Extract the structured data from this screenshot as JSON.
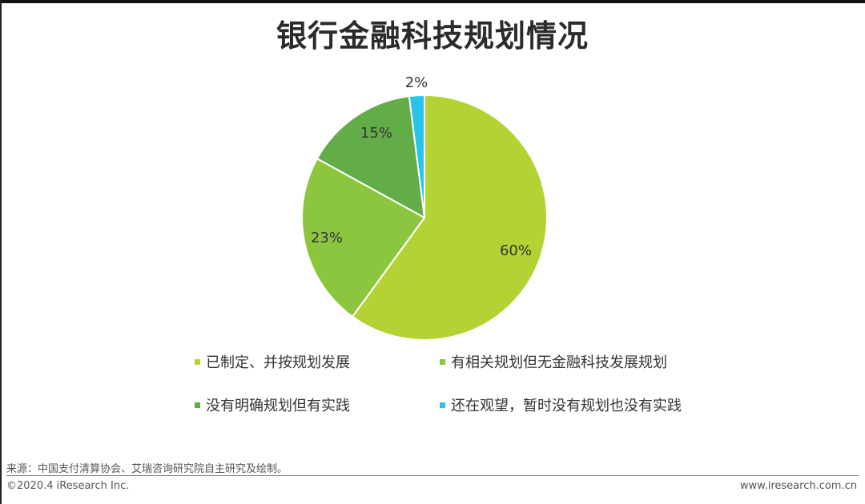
{
  "title": "银行金融科技规划情况",
  "chart_data": {
    "type": "pie",
    "slices": [
      {
        "label": "已制定、并按规划发展",
        "value": 60,
        "display": "60%",
        "color": "#b3d335"
      },
      {
        "label": "有相关规划但无金融科技发展规划",
        "value": 23,
        "display": "23%",
        "color": "#8cc63f"
      },
      {
        "label": "没有明确规划但有实践",
        "value": 15,
        "display": "15%",
        "color": "#62ad47"
      },
      {
        "label": "还在观望，暂时没有规划也没有实践",
        "value": 2,
        "display": "2%",
        "color": "#29c4ec"
      }
    ],
    "legend_placement": "bottom"
  },
  "footer": {
    "source": "来源：中国支付清算协会、艾瑞咨询研究院自主研究及绘制。",
    "copyright": "©2020.4 iResearch Inc.",
    "website": "www.iresearch.com.cn"
  }
}
